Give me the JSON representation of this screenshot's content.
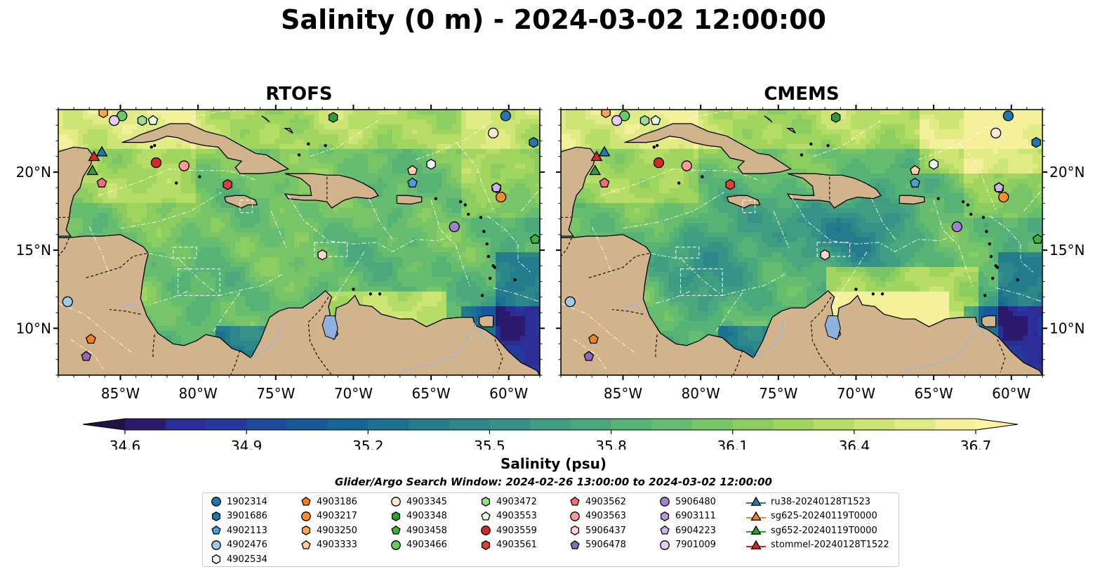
{
  "title": "Salinity (0 m) - 2024-03-02 12:00:00",
  "panels": [
    {
      "title": "RTOFS",
      "variant": "rtofs"
    },
    {
      "title": "CMEMS",
      "variant": "cmems"
    }
  ],
  "map_extent": {
    "lon": [
      -89,
      -58
    ],
    "lat": [
      7,
      24
    ]
  },
  "lon_ticks": [
    {
      "value": -85,
      "label": "85°W"
    },
    {
      "value": -80,
      "label": "80°W"
    },
    {
      "value": -75,
      "label": "75°W"
    },
    {
      "value": -70,
      "label": "70°W"
    },
    {
      "value": -65,
      "label": "65°W"
    },
    {
      "value": -60,
      "label": "60°W"
    }
  ],
  "lat_ticks": [
    {
      "value": 20,
      "label": "20°N"
    },
    {
      "value": 15,
      "label": "15°N"
    },
    {
      "value": 10,
      "label": "10°N"
    }
  ],
  "colorbar": {
    "label": "Salinity (psu)",
    "range": [
      34.6,
      36.7
    ],
    "ticks": [
      "34.6",
      "34.9",
      "35.2",
      "35.5",
      "35.8",
      "36.1",
      "36.4",
      "36.7"
    ],
    "colors": [
      "#2b1a6b",
      "#2b2c96",
      "#233a9c",
      "#1c4a9a",
      "#17589a",
      "#176596",
      "#1c7191",
      "#237c8c",
      "#2b8789",
      "#349286",
      "#3f9d82",
      "#4aa87c",
      "#57b276",
      "#66bc6f",
      "#78c567",
      "#8ccd62",
      "#a0d55f",
      "#b6dd66",
      "#cde574",
      "#e2ec86",
      "#f5f09b"
    ]
  },
  "search_window": "Glider/Argo Search Window: 2024-02-26 13:00:00 to 2024-03-02 12:00:00",
  "legend": [
    {
      "label": "1902314",
      "marker": "circle",
      "color": "#1f77b4"
    },
    {
      "label": "3901686",
      "marker": "hexagon",
      "color": "#1f77b4"
    },
    {
      "label": "4902113",
      "marker": "pentagon",
      "color": "#4c9ed9"
    },
    {
      "label": "4902476",
      "marker": "circle",
      "color": "#9ecae9"
    },
    {
      "label": "4902534",
      "marker": "hexagon",
      "color": "#e8f4fb"
    },
    {
      "label": "4903186",
      "marker": "pentagon",
      "color": "#ff7f0e"
    },
    {
      "label": "4903217",
      "marker": "circle",
      "color": "#ff8c2a"
    },
    {
      "label": "4903250",
      "marker": "hexagon",
      "color": "#ffa64d"
    },
    {
      "label": "4903333",
      "marker": "pentagon",
      "color": "#ffd29a"
    },
    {
      "label": "4903345",
      "marker": "circle",
      "color": "#ffe8d0"
    },
    {
      "label": "4903348",
      "marker": "hexagon",
      "color": "#2ca02c"
    },
    {
      "label": "4903458",
      "marker": "pentagon",
      "color": "#3cb43c"
    },
    {
      "label": "4903466",
      "marker": "circle",
      "color": "#66cc66"
    },
    {
      "label": "4903472",
      "marker": "hexagon",
      "color": "#98df8a"
    },
    {
      "label": "4903553",
      "marker": "pentagon",
      "color": "#e6f9e1"
    },
    {
      "label": "4903559",
      "marker": "circle",
      "color": "#d62728"
    },
    {
      "label": "4903561",
      "marker": "hexagon",
      "color": "#e0403a"
    },
    {
      "label": "4903562",
      "marker": "pentagon",
      "color": "#f07070"
    },
    {
      "label": "4903563",
      "marker": "circle",
      "color": "#ff9896"
    },
    {
      "label": "5906437",
      "marker": "hexagon",
      "color": "#ffd3d1"
    },
    {
      "label": "5906478",
      "marker": "pentagon",
      "color": "#9467bd"
    },
    {
      "label": "5906480",
      "marker": "circle",
      "color": "#a47fd0"
    },
    {
      "label": "6903111",
      "marker": "hexagon",
      "color": "#b896e0"
    },
    {
      "label": "6904223",
      "marker": "pentagon",
      "color": "#cdb2ec"
    },
    {
      "label": "7901009",
      "marker": "circle",
      "color": "#e4cdf8"
    },
    {
      "label": "ru38-20240128T1523",
      "marker": "triangle-line",
      "color": "#1f77b4"
    },
    {
      "label": "sg625-20240119T0000",
      "marker": "triangle-line",
      "color": "#ff7f0e"
    },
    {
      "label": "sg652-20240119T0000",
      "marker": "triangle-line",
      "color": "#2ca02c"
    },
    {
      "label": "stommel-20240128T1522",
      "marker": "triangle-line",
      "color": "#d62728"
    }
  ],
  "platforms": [
    {
      "lon": -60.2,
      "lat": 23.6,
      "marker": "circle",
      "color": "#1f77b4"
    },
    {
      "lon": -58.4,
      "lat": 21.9,
      "marker": "hexagon",
      "color": "#1f77b4"
    },
    {
      "lon": -66.2,
      "lat": 19.3,
      "marker": "pentagon",
      "color": "#4c9ed9"
    },
    {
      "lon": -88.4,
      "lat": 11.7,
      "marker": "circle",
      "color": "#9ecae9"
    },
    {
      "lon": -65.0,
      "lat": 20.5,
      "marker": "hexagon",
      "color": "#e8f4fb"
    },
    {
      "lon": -86.9,
      "lat": 9.3,
      "marker": "pentagon",
      "color": "#ff7f0e"
    },
    {
      "lon": -60.5,
      "lat": 18.4,
      "marker": "circle",
      "color": "#ff8c2a"
    },
    {
      "lon": -86.1,
      "lat": 23.8,
      "marker": "hexagon",
      "color": "#ffa64d"
    },
    {
      "lon": -66.2,
      "lat": 20.1,
      "marker": "pentagon",
      "color": "#ffd29a"
    },
    {
      "lon": -61.0,
      "lat": 22.5,
      "marker": "circle",
      "color": "#ffe8d0"
    },
    {
      "lon": -71.3,
      "lat": 23.5,
      "marker": "hexagon",
      "color": "#2ca02c"
    },
    {
      "lon": -58.3,
      "lat": 15.7,
      "marker": "pentagon",
      "color": "#3cb43c"
    },
    {
      "lon": -84.9,
      "lat": 23.6,
      "marker": "circle",
      "color": "#66cc66"
    },
    {
      "lon": -83.6,
      "lat": 23.3,
      "marker": "hexagon",
      "color": "#98df8a"
    },
    {
      "lon": -82.9,
      "lat": 23.3,
      "marker": "pentagon",
      "color": "#e6f9e1"
    },
    {
      "lon": -82.7,
      "lat": 20.6,
      "marker": "circle",
      "color": "#d62728"
    },
    {
      "lon": -78.1,
      "lat": 19.2,
      "marker": "hexagon",
      "color": "#e0403a"
    },
    {
      "lon": -86.2,
      "lat": 19.3,
      "marker": "pentagon",
      "color": "#f07070"
    },
    {
      "lon": -80.9,
      "lat": 20.4,
      "marker": "circle",
      "color": "#ff9896"
    },
    {
      "lon": -72.0,
      "lat": 14.7,
      "marker": "hexagon",
      "color": "#ffd3d1"
    },
    {
      "lon": -87.2,
      "lat": 8.2,
      "marker": "pentagon",
      "color": "#9467bd"
    },
    {
      "lon": -63.5,
      "lat": 16.5,
      "marker": "circle",
      "color": "#a47fd0"
    },
    {
      "lon": -60.8,
      "lat": 19.0,
      "marker": "hexagon",
      "color": "#b896e0"
    },
    {
      "lon": -60.8,
      "lat": 19.0,
      "marker": "pentagon",
      "color": "#cdb2ec"
    },
    {
      "lon": -85.4,
      "lat": 23.3,
      "marker": "circle",
      "color": "#e4cdf8"
    },
    {
      "lon": -86.2,
      "lat": 21.3,
      "marker": "triangle",
      "color": "#1f77b4"
    },
    {
      "lon": -86.8,
      "lat": 20.1,
      "marker": "triangle",
      "color": "#2ca02c"
    },
    {
      "lon": -86.7,
      "lat": 21.0,
      "marker": "triangle",
      "color": "#d62728"
    }
  ]
}
